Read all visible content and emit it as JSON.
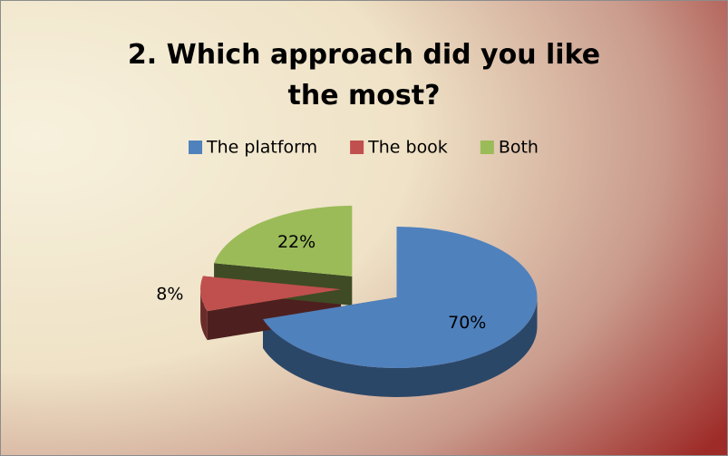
{
  "chart_data": {
    "type": "pie3d",
    "title": "2. Which approach did you like the most?",
    "categories": [
      "The platform",
      "The book",
      "Both"
    ],
    "values": [
      70,
      8,
      22
    ],
    "value_labels": [
      "70%",
      "8%",
      "22%"
    ],
    "colors": [
      "#4f81bd",
      "#c0504d",
      "#9bbb59"
    ],
    "legend": "top"
  }
}
